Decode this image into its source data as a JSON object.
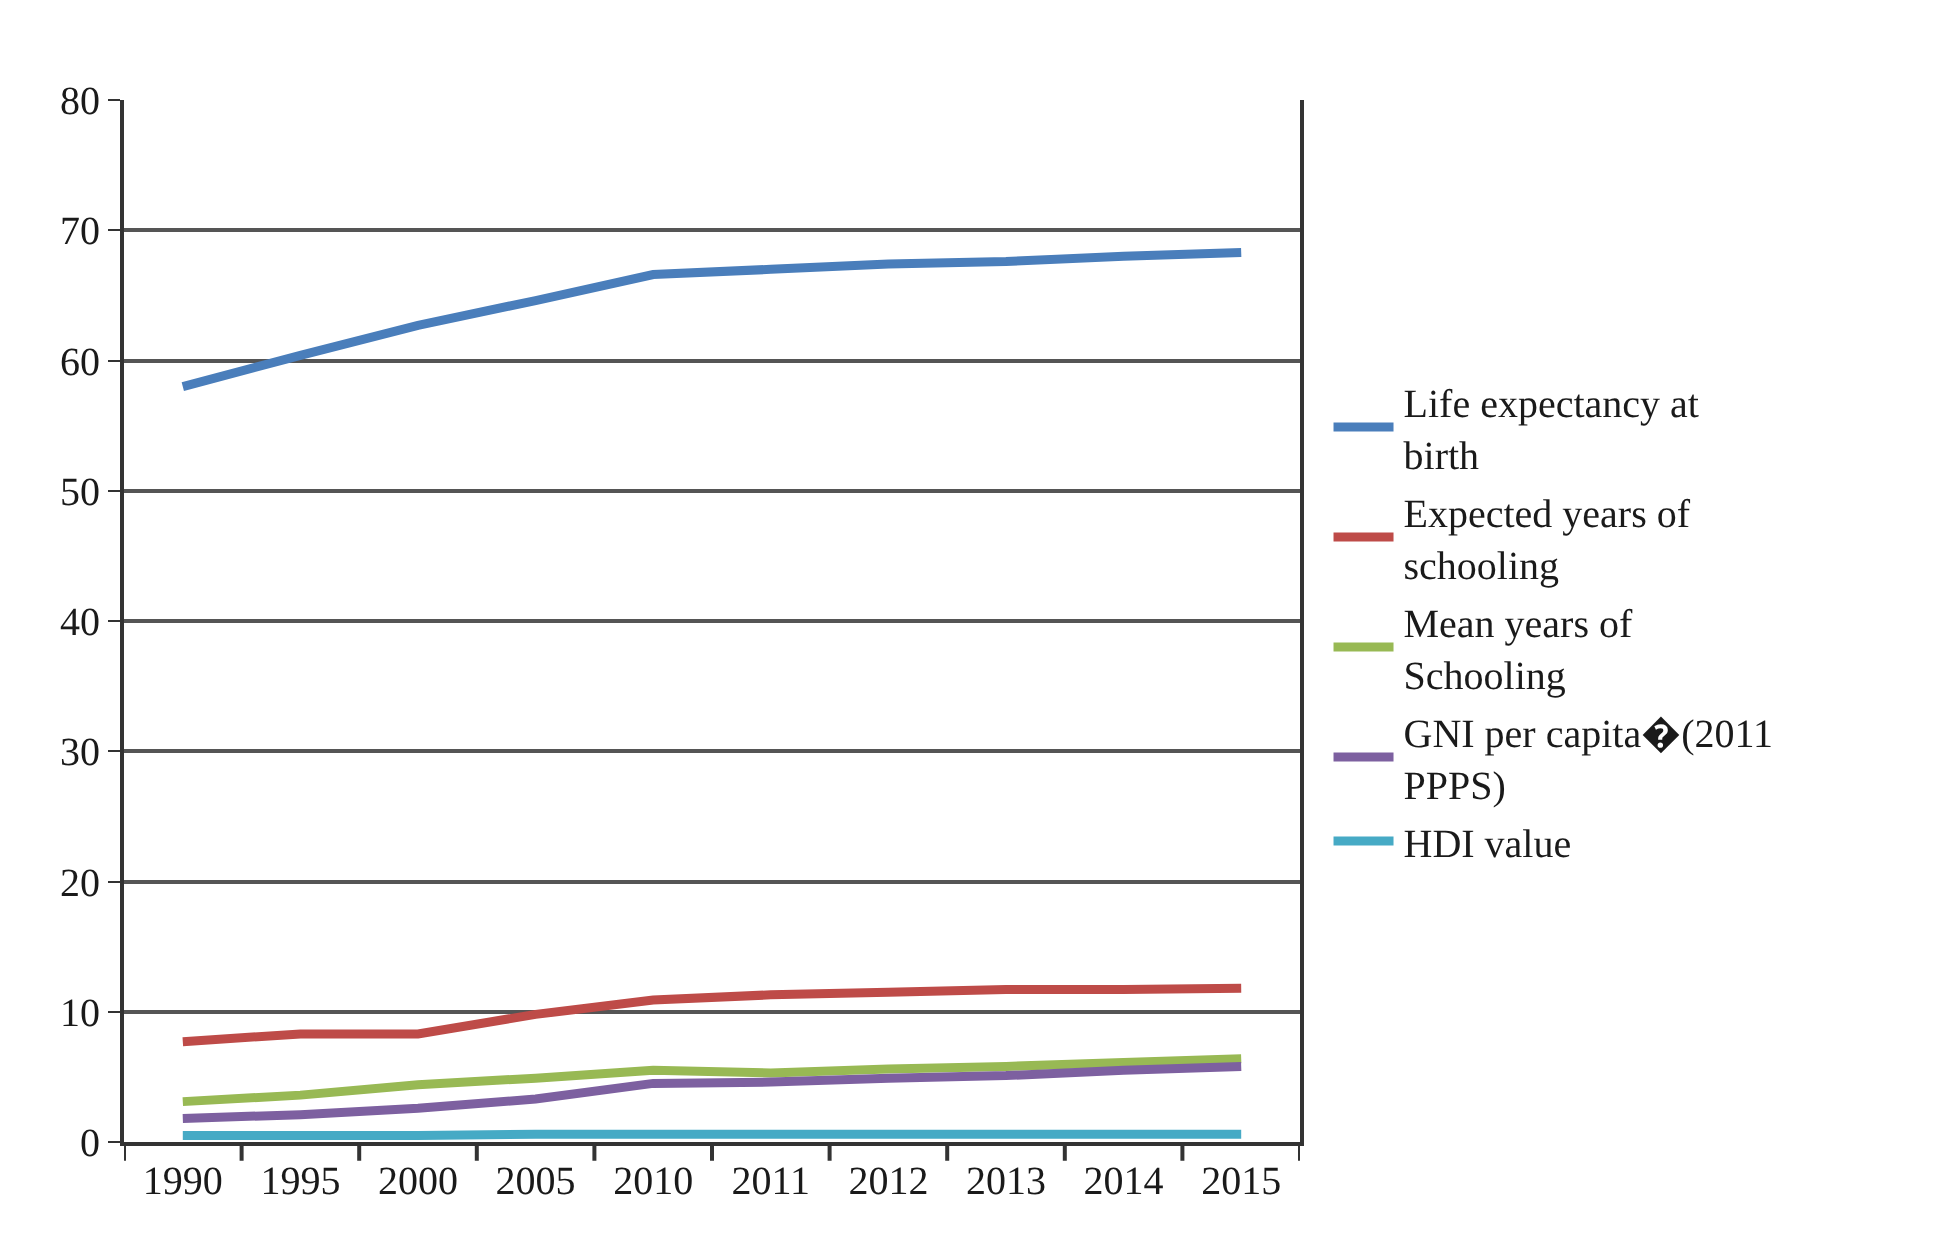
{
  "chart_data": {
    "type": "line",
    "categories": [
      "1990",
      "1995",
      "2000",
      "2005",
      "2010",
      "2011",
      "2012",
      "2013",
      "2014",
      "2015"
    ],
    "ylim": [
      0,
      80
    ],
    "yticks": [
      0,
      10,
      20,
      30,
      40,
      50,
      60,
      70,
      80
    ],
    "grid": "y",
    "legend": "right",
    "marker": "none",
    "line_style": "solid",
    "series": [
      {
        "name": "Life expectancy at birth",
        "color": "#4a7ebb",
        "values": [
          58.0,
          60.4,
          62.7,
          64.6,
          66.6,
          67.0,
          67.4,
          67.6,
          68.0,
          68.3
        ]
      },
      {
        "name": "Expected years of schooling",
        "color": "#be4b48",
        "values": [
          7.7,
          8.3,
          8.3,
          9.8,
          10.9,
          11.3,
          11.5,
          11.7,
          11.7,
          11.8
        ]
      },
      {
        "name": "Mean years of Schooling",
        "color": "#98b954",
        "values": [
          3.1,
          3.6,
          4.4,
          4.9,
          5.5,
          5.3,
          5.6,
          5.8,
          6.1,
          6.4
        ]
      },
      {
        "name": "GNI per capita�(2011 PPPS)",
        "color": "#7d60a0",
        "values": [
          1.8,
          2.1,
          2.6,
          3.3,
          4.5,
          4.6,
          4.9,
          5.1,
          5.5,
          5.8
        ]
      },
      {
        "name": "HDI value",
        "color": "#46aac5",
        "values": [
          0.5,
          0.5,
          0.5,
          0.6,
          0.6,
          0.6,
          0.6,
          0.6,
          0.6,
          0.6
        ]
      }
    ]
  }
}
